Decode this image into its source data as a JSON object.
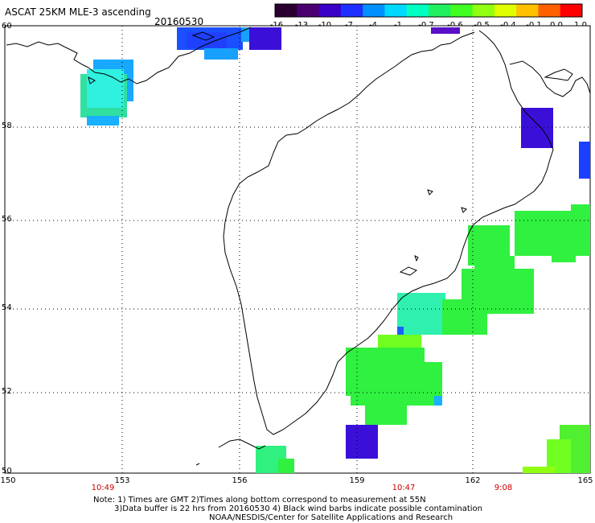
{
  "header": {
    "title": "ASCAT 25KM MLE-3 ascending",
    "date": "20160530"
  },
  "colorbar": {
    "labels": [
      "-16",
      "-13",
      "-10",
      "-7",
      "-4",
      "-1",
      "-0.7",
      "-0.6",
      "-0.5",
      "-0.4",
      "-0.1",
      "0.0",
      "1.0"
    ],
    "colors": [
      "#2a0030",
      "#4b0070",
      "#3a00c8",
      "#1e30ff",
      "#0090ff",
      "#00d8ff",
      "#00ffc0",
      "#20f060",
      "#40ff20",
      "#90ff10",
      "#e0ff00",
      "#ffc000",
      "#ff6000",
      "#ff0000"
    ]
  },
  "axes": {
    "y_labels": [
      "60",
      "58",
      "56",
      "54",
      "52",
      "50"
    ],
    "x_labels": [
      "150",
      "153",
      "156",
      "159",
      "162",
      "165"
    ]
  },
  "times": [
    "10:49",
    "10:47",
    "9:08"
  ],
  "notes": [
    "Note: 1) Times are GMT 2)Times along bottom correspond to measurement at 55N",
    "3)Data buffer is 22 hrs from 20160530 4) Black wind barbs indicate possible contamination",
    "NOAA/NESDIS/Center for Satellite Applications and Research"
  ],
  "colors": {
    "indigo": "#3a10d8",
    "blue": "#1a40ff",
    "sky": "#18a8ff",
    "cyan": "#30f0e0",
    "green": "#30f040",
    "lime": "#70ff20"
  }
}
